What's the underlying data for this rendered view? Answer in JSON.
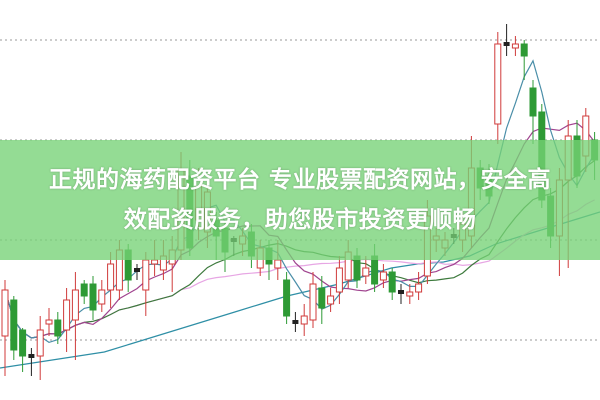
{
  "banner": {
    "line1": "正规的海药配资平台 专业股票配资网站，安全高",
    "line2": "效配资服务，助您股市投资更顺畅"
  },
  "chart_data": {
    "type": "candlestick",
    "title": "",
    "xlabel": "",
    "ylabel": "",
    "ylim": [
      0,
      100
    ],
    "grid": "horizontal dotted",
    "colors": {
      "up": "#d03a3a",
      "down": "#2e9a35",
      "doji": "#222222",
      "grid": "#999999",
      "ma5": "#4a8ea8",
      "ma10": "#a0448f",
      "ma20": "#3d7a3d",
      "ma30": "#e7a6e4",
      "ma_long": "#2f8fa6"
    },
    "candles_ohlc": [
      [
        16,
        30,
        6,
        27.5
      ],
      [
        25,
        26,
        10,
        12.5
      ],
      [
        17.5,
        18,
        7,
        11
      ],
      [
        11,
        13,
        6,
        11
      ],
      [
        11,
        21,
        5,
        17.5
      ],
      [
        19,
        23,
        16,
        20
      ],
      [
        20,
        22,
        14,
        16
      ],
      [
        17.5,
        28,
        12,
        25
      ],
      [
        20,
        32,
        10,
        27.5
      ],
      [
        29,
        30,
        24,
        26
      ],
      [
        29,
        31,
        20,
        22.5
      ],
      [
        24,
        30,
        22,
        27.5
      ],
      [
        27.5,
        37,
        23,
        34
      ],
      [
        27.5,
        40,
        25,
        37.5
      ],
      [
        37.5,
        39,
        27,
        30
      ],
      [
        32.5,
        34,
        30,
        32.5
      ],
      [
        27.5,
        37,
        21,
        35
      ],
      [
        34,
        40,
        31,
        35
      ],
      [
        32.5,
        40,
        30,
        36
      ],
      [
        34,
        41,
        27,
        37.5
      ],
      [
        37.5,
        62,
        35,
        57.5
      ],
      [
        56,
        60,
        36,
        38
      ],
      [
        45,
        58,
        40,
        55
      ],
      [
        42,
        55,
        38,
        52
      ],
      [
        45,
        47,
        35,
        41
      ],
      [
        43,
        45,
        32,
        37
      ],
      [
        40,
        41,
        36,
        40
      ],
      [
        39,
        43,
        36,
        41
      ],
      [
        42,
        44,
        33,
        36
      ],
      [
        33,
        40,
        31,
        38
      ],
      [
        38,
        40,
        30,
        34
      ],
      [
        33,
        40,
        30,
        35
      ],
      [
        30,
        32,
        19,
        21
      ],
      [
        19.5,
        22,
        17,
        19.5
      ],
      [
        19,
        24,
        16,
        21
      ],
      [
        20,
        32,
        18,
        29
      ],
      [
        28,
        31,
        19,
        23
      ],
      [
        24,
        28,
        22,
        26
      ],
      [
        27,
        36,
        24,
        33
      ],
      [
        30,
        40,
        28,
        37
      ],
      [
        36,
        38,
        28,
        30
      ],
      [
        31,
        36,
        29,
        33
      ],
      [
        36,
        39,
        27,
        29
      ],
      [
        30,
        34,
        28,
        32
      ],
      [
        32,
        33,
        25,
        27
      ],
      [
        27,
        29,
        24,
        27
      ],
      [
        26,
        29,
        24,
        27
      ],
      [
        27,
        32,
        25,
        29
      ],
      [
        31,
        50,
        29,
        46
      ],
      [
        40,
        43,
        37,
        41
      ],
      [
        38,
        42,
        36,
        40
      ],
      [
        41,
        43,
        39,
        41
      ],
      [
        40,
        47,
        37,
        44
      ],
      [
        41,
        66,
        38,
        58
      ],
      [
        58,
        60,
        50,
        53
      ],
      [
        56,
        59,
        49,
        51
      ],
      [
        69,
        92,
        64,
        89
      ],
      [
        89,
        94,
        86,
        89
      ],
      [
        88,
        91,
        86,
        89
      ],
      [
        89,
        90,
        80,
        86
      ],
      [
        78,
        80,
        64,
        71
      ],
      [
        72,
        74,
        48,
        50
      ],
      [
        51,
        53,
        38,
        41
      ],
      [
        41,
        58,
        31,
        55
      ],
      [
        55,
        70,
        33,
        66
      ],
      [
        66,
        70,
        53,
        56
      ],
      [
        61,
        73,
        57,
        71
      ],
      [
        65,
        67,
        55,
        60
      ]
    ],
    "ma_long": [
      8,
      9,
      10,
      11,
      12,
      14,
      16,
      18,
      20,
      22,
      24,
      26,
      27.5,
      29,
      31,
      33,
      34,
      34.5,
      36,
      39,
      41,
      43,
      45,
      47
    ],
    "gridlines": [
      90,
      65,
      40,
      15
    ]
  }
}
